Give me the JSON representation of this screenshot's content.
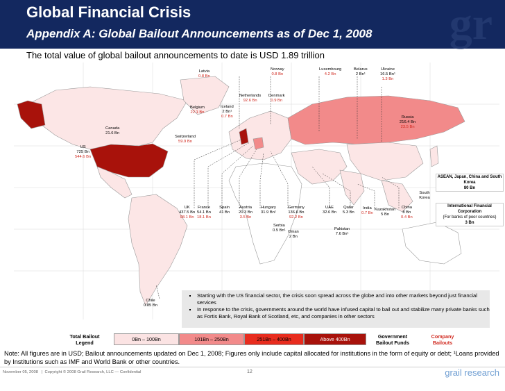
{
  "header": {
    "title": "Global Financial Crisis",
    "subtitle": "Appendix A: Global Bailout Announcements as of Dec 1, 2008",
    "logo": "gr"
  },
  "summary": "The total value of global bailout announcements to date is USD 1.89 trillion",
  "countries": [
    {
      "name": "Latvia",
      "value": "0.8 Bn",
      "value_color": "red"
    },
    {
      "name": "Norway",
      "value": "0.8 Bn",
      "value_color": "red"
    },
    {
      "name": "Luxembourg",
      "value": "4.2 Bn",
      "value_color": "red"
    },
    {
      "name": "Belarus",
      "value": "2 Bn¹",
      "value_color": "black"
    },
    {
      "name": "Ukraine",
      "value": "16.5 Bn¹",
      "value_color": "black",
      "extra": "1.3 Bn"
    },
    {
      "name": "Netherlands",
      "value": "92.6 Bn",
      "value_color": "red"
    },
    {
      "name": "Denmark",
      "value": "0.9 Bn",
      "value_color": "red"
    },
    {
      "name": "Belgium",
      "value": "22.1 Bn",
      "value_color": "red"
    },
    {
      "name": "Iceland",
      "value": "2 Bn¹",
      "value_color": "black",
      "extra": "0.7 Bn"
    },
    {
      "name": "Russia",
      "value": "216.4 Bn",
      "value_color": "black",
      "extra": "23.5 Bn"
    },
    {
      "name": "Canada",
      "value": "21.6 Bn",
      "value_color": "black"
    },
    {
      "name": "Switzerland",
      "value": "59.9 Bn",
      "value_color": "red"
    },
    {
      "name": "US",
      "value": "725 Bn",
      "value_color": "black",
      "extra": "544.6 Bn"
    },
    {
      "name": "UK",
      "value": "437.5 Bn",
      "value_color": "black",
      "extra": "98.1 Bn"
    },
    {
      "name": "France",
      "value": "54.1 Bn",
      "value_color": "black",
      "extra": "18.1 Bn"
    },
    {
      "name": "Spain",
      "value": "41 Bn",
      "value_color": "black"
    },
    {
      "name": "Austria",
      "value": "20.3 Bn",
      "value_color": "black",
      "extra": "3.5 Bn"
    },
    {
      "name": "Hungary",
      "value": "31.9 Bn¹",
      "value_color": "black"
    },
    {
      "name": "Germany",
      "value": "136.6 Bn",
      "value_color": "black",
      "extra": "92.2 Bn"
    },
    {
      "name": "UAE",
      "value": "32.6 Bn",
      "value_color": "black"
    },
    {
      "name": "Qatar",
      "value": "5.3 Bn",
      "value_color": "black"
    },
    {
      "name": "India",
      "value": "0.7 Bn",
      "value_color": "red"
    },
    {
      "name": "Kazakhstan",
      "value": "5 Bn",
      "value_color": "black"
    },
    {
      "name": "China",
      "value": "8 Bn",
      "value_color": "black",
      "extra": "0.4 Bn"
    },
    {
      "name": "South Korea",
      "value": "",
      "value_color": "black"
    },
    {
      "name": "Serbia",
      "value": "0.5 Bn¹",
      "value_color": "black"
    },
    {
      "name": "Oman",
      "value": "2 Bn",
      "value_color": "black"
    },
    {
      "name": "Pakistan",
      "value": "7.6 Bn¹",
      "value_color": "black"
    },
    {
      "name": "Chile",
      "value": "0.85 Bn",
      "value_color": "black"
    }
  ],
  "side_boxes": {
    "asean": "ASEAN, Japan, China and South Korea",
    "asean_value": "80 Bn",
    "ifc": "International Financial Corporation",
    "ifc_note": "(For banks of poor countries)",
    "ifc_value": "3 Bn"
  },
  "bullets": [
    "Starting with the US financial sector, the crisis soon spread across the globe and into other markets beyond just financial services",
    "In response to the crisis, governments around the world have infused capital to bail out and stabilize many private banks such as Fortis Bank, Royal Bank of Scotland, etc, and companies in other sectors"
  ],
  "legend": {
    "title": "Total Bailout Legend",
    "items": [
      {
        "label": "0Bn – 100Bn",
        "color": "#fbe3e3"
      },
      {
        "label": "101Bn – 250Bn",
        "color": "#f28a8a"
      },
      {
        "label": "251Bn – 400Bn",
        "color": "#e82c1e"
      },
      {
        "label": "Above 400Bn",
        "color": "#a8120b"
      }
    ],
    "government": "Government Bailout Funds",
    "company": "Company Bailouts"
  },
  "note": "Note:  All figures are in USD; Bailout announcements updated on Dec 1, 2008; Figures only include capital allocated for institutions in the form of equity or debt; ¹Loans provided by Institutions such as IMF and World Bank or other  countries.",
  "footer": {
    "date": "November 05, 2008",
    "copyright": "Copyright © 2008 Grail Research, LLC — Confidential",
    "page": "12",
    "brand": "grail research"
  }
}
